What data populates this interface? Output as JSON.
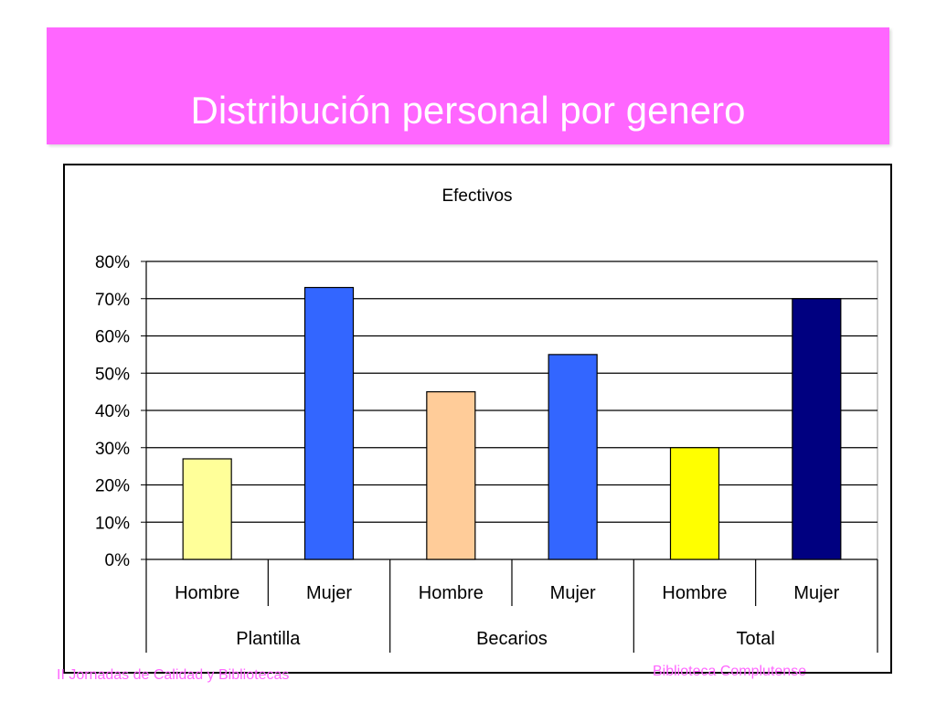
{
  "slide": {
    "title": "Distribución personal por genero",
    "footer_left": "II Jornadas de Calidad y Bibliotecas",
    "footer_right": "Biblioteca Complutense"
  },
  "colors": {
    "title_band": "#ff66ff",
    "title_text": "#ffffff",
    "footer_text": "#ff66ff"
  },
  "chart_data": {
    "type": "bar",
    "title": "Efectivos",
    "xlabel": "",
    "ylabel": "",
    "ylim": [
      0,
      0.8
    ],
    "y_ticks": [
      "0%",
      "10%",
      "20%",
      "30%",
      "40%",
      "50%",
      "60%",
      "70%",
      "80%"
    ],
    "grid": true,
    "legend": "none",
    "groups": [
      "Plantilla",
      "Becarios",
      "Total"
    ],
    "categories": [
      "Hombre",
      "Mujer",
      "Hombre",
      "Mujer",
      "Hombre",
      "Mujer"
    ],
    "values": [
      0.27,
      0.73,
      0.45,
      0.55,
      0.3,
      0.7
    ],
    "bar_colors": [
      "#ffff99",
      "#3366ff",
      "#ffcc99",
      "#3366ff",
      "#ffff00",
      "#000080"
    ]
  }
}
